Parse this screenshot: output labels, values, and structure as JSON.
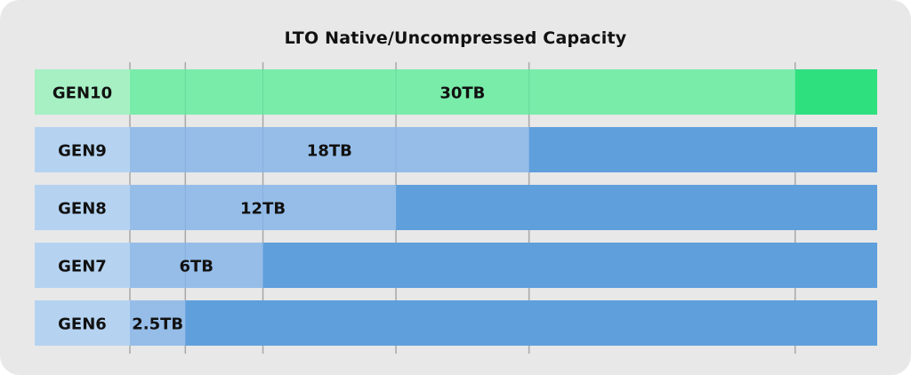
{
  "chart_data": {
    "type": "bar",
    "orientation": "horizontal",
    "title": "LTO Native/Uncompressed Capacity",
    "categories": [
      "GEN10",
      "GEN9",
      "GEN8",
      "GEN7",
      "GEN6"
    ],
    "values": [
      30,
      18,
      12,
      6,
      2.5
    ],
    "value_labels": [
      "30TB",
      "18TB",
      "12TB",
      "6TB",
      "2.5TB"
    ],
    "unit": "TB",
    "xlim": [
      0,
      33.7
    ],
    "grid": true,
    "gridlines_at": [
      0,
      2.5,
      6,
      12,
      18,
      30
    ],
    "colors": {
      "highlight_fill": "#79ecaa",
      "highlight_track": "#2fe07f",
      "highlight_label_bg": "#a6f0c4",
      "fill": "#95bde8",
      "track": "#5f9fdc",
      "label_bg": "#b5d3f1",
      "grid": "#a8a8a8"
    }
  }
}
